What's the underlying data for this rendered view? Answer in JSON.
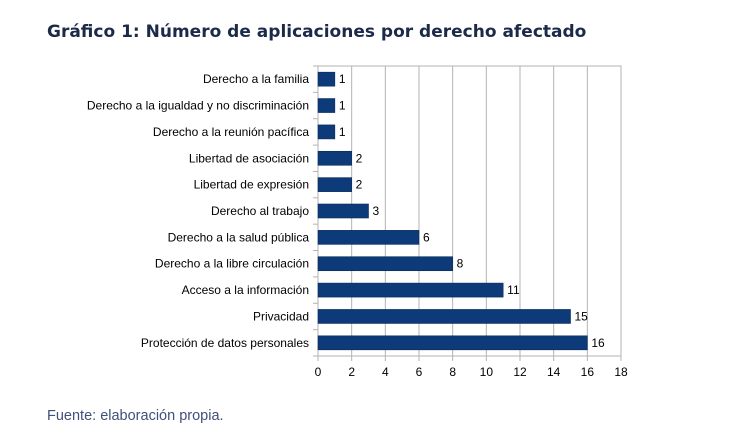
{
  "title": "Gráfico 1: Número de aplicaciones por derecho afectado",
  "source": "Fuente: elaboración propia.",
  "chart_data": {
    "type": "bar",
    "orientation": "horizontal",
    "categories": [
      "Derecho a la familia",
      "Derecho a la igualdad y no discriminación",
      "Derecho a la reunión pacífica",
      "Libertad de asociación",
      "Libertad de expresión",
      "Derecho al trabajo",
      "Derecho a la salud pública",
      "Derecho a la libre circulación",
      "Acceso a la información",
      "Privacidad",
      "Protección de datos personales"
    ],
    "values": [
      1,
      1,
      1,
      2,
      2,
      3,
      6,
      8,
      11,
      15,
      16
    ],
    "xlim": [
      0,
      18
    ],
    "xticks": [
      0,
      2,
      4,
      6,
      8,
      10,
      12,
      14,
      16,
      18
    ],
    "xlabel": "",
    "ylabel": "",
    "grid": true,
    "bar_color": "#0d3a78"
  }
}
